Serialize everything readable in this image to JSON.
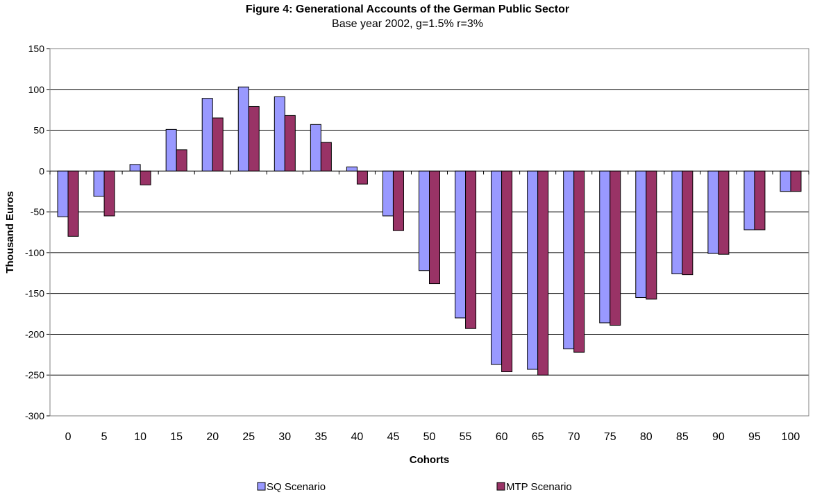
{
  "chart_data": {
    "type": "bar",
    "title": "Figure 4: Generational Accounts of the German Public Sector",
    "subtitle": "Base year 2002, g=1.5% r=3%",
    "xlabel": "Cohorts",
    "ylabel": "Thousand Euros",
    "ylim": [
      -300,
      150
    ],
    "yticks": [
      150,
      100,
      50,
      0,
      -50,
      -100,
      -150,
      -200,
      -250,
      -300
    ],
    "grid": true,
    "legend_position": "bottom",
    "categories": [
      "0",
      "5",
      "10",
      "15",
      "20",
      "25",
      "30",
      "35",
      "40",
      "45",
      "50",
      "55",
      "60",
      "65",
      "70",
      "75",
      "80",
      "85",
      "90",
      "95",
      "100"
    ],
    "series": [
      {
        "name": "SQ Scenario",
        "color": "#9999ff",
        "values": [
          -56,
          -31,
          8,
          51,
          89,
          103,
          91,
          57,
          5,
          -55,
          -122,
          -180,
          -237,
          -243,
          -218,
          -186,
          -155,
          -126,
          -101,
          -72,
          -25
        ]
      },
      {
        "name": "MTP Scenario",
        "color": "#993366",
        "values": [
          -80,
          -55,
          -17,
          26,
          65,
          79,
          68,
          35,
          -16,
          -73,
          -138,
          -193,
          -246,
          -250,
          -222,
          -189,
          -157,
          -127,
          -102,
          -72,
          -25
        ]
      }
    ]
  }
}
